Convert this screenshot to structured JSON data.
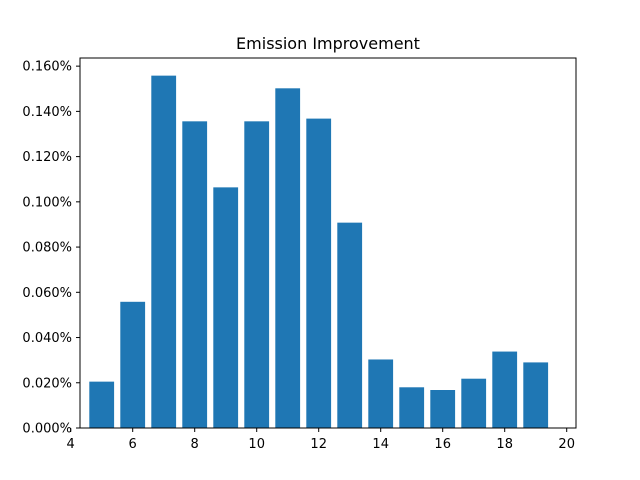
{
  "chart_data": {
    "type": "bar",
    "title": "Emission Improvement",
    "xlabel": "",
    "ylabel": "",
    "x": [
      5,
      6,
      7,
      8,
      9,
      10,
      11,
      12,
      13,
      14,
      15,
      16,
      17,
      18,
      19
    ],
    "values": [
      0.0205,
      0.0558,
      0.1558,
      0.1356,
      0.1064,
      0.1356,
      0.1502,
      0.1368,
      0.0908,
      0.0303,
      0.018,
      0.0168,
      0.0218,
      0.0338,
      0.029
    ],
    "value_unit": "%",
    "xlim": [
      4.3,
      20.3
    ],
    "ylim": [
      0,
      0.1636
    ],
    "xticks": [
      4,
      6,
      8,
      10,
      12,
      14,
      16,
      18,
      20
    ],
    "xtick_labels": [
      "4",
      "6",
      "8",
      "10",
      "12",
      "14",
      "16",
      "18",
      "20"
    ],
    "yticks": [
      0,
      0.02,
      0.04,
      0.06,
      0.08,
      0.1,
      0.12,
      0.14,
      0.16
    ],
    "ytick_labels": [
      "0.000%",
      "0.020%",
      "0.040%",
      "0.060%",
      "0.080%",
      "0.100%",
      "0.120%",
      "0.140%",
      "0.160%"
    ],
    "bar_color": "#1f77b4",
    "grid": false,
    "legend": "none"
  }
}
